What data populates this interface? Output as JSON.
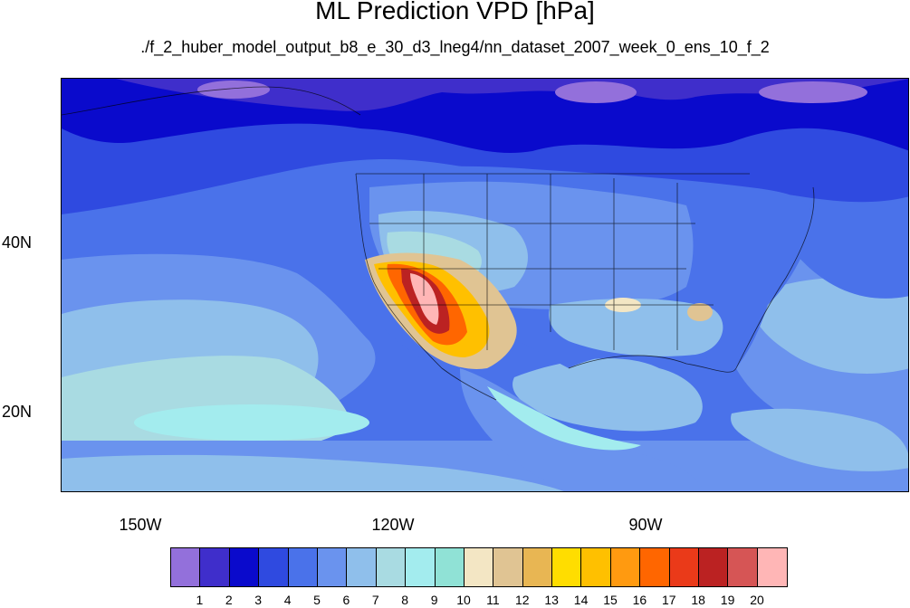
{
  "title": "ML Prediction VPD [hPa]",
  "subtitle": "./f_2_huber_model_output_b8_e_30_d3_lneg4/nn_dataset_2007_week_0_ens_10_f_2",
  "lat_labels": [
    "40N",
    "20N"
  ],
  "lon_labels": [
    "150W",
    "120W",
    "90W"
  ],
  "colorbar": {
    "labels": [
      "1",
      "2",
      "3",
      "4",
      "5",
      "6",
      "7",
      "8",
      "9",
      "10",
      "11",
      "12",
      "13",
      "14",
      "15",
      "16",
      "17",
      "18",
      "19",
      "20"
    ],
    "colors": [
      "#9370db",
      "#3f2ecb",
      "#0a0acc",
      "#2f4ae0",
      "#4a72ea",
      "#6a93ee",
      "#8fbfeb",
      "#a9dbe2",
      "#a3ecee",
      "#90e2d6",
      "#f3e6c4",
      "#e0c493",
      "#e8b653",
      "#ffdd00",
      "#ffc000",
      "#ff9a10",
      "#ff6600",
      "#ea3a19",
      "#bb2222",
      "#d65555",
      "#ffb6b6"
    ]
  }
}
